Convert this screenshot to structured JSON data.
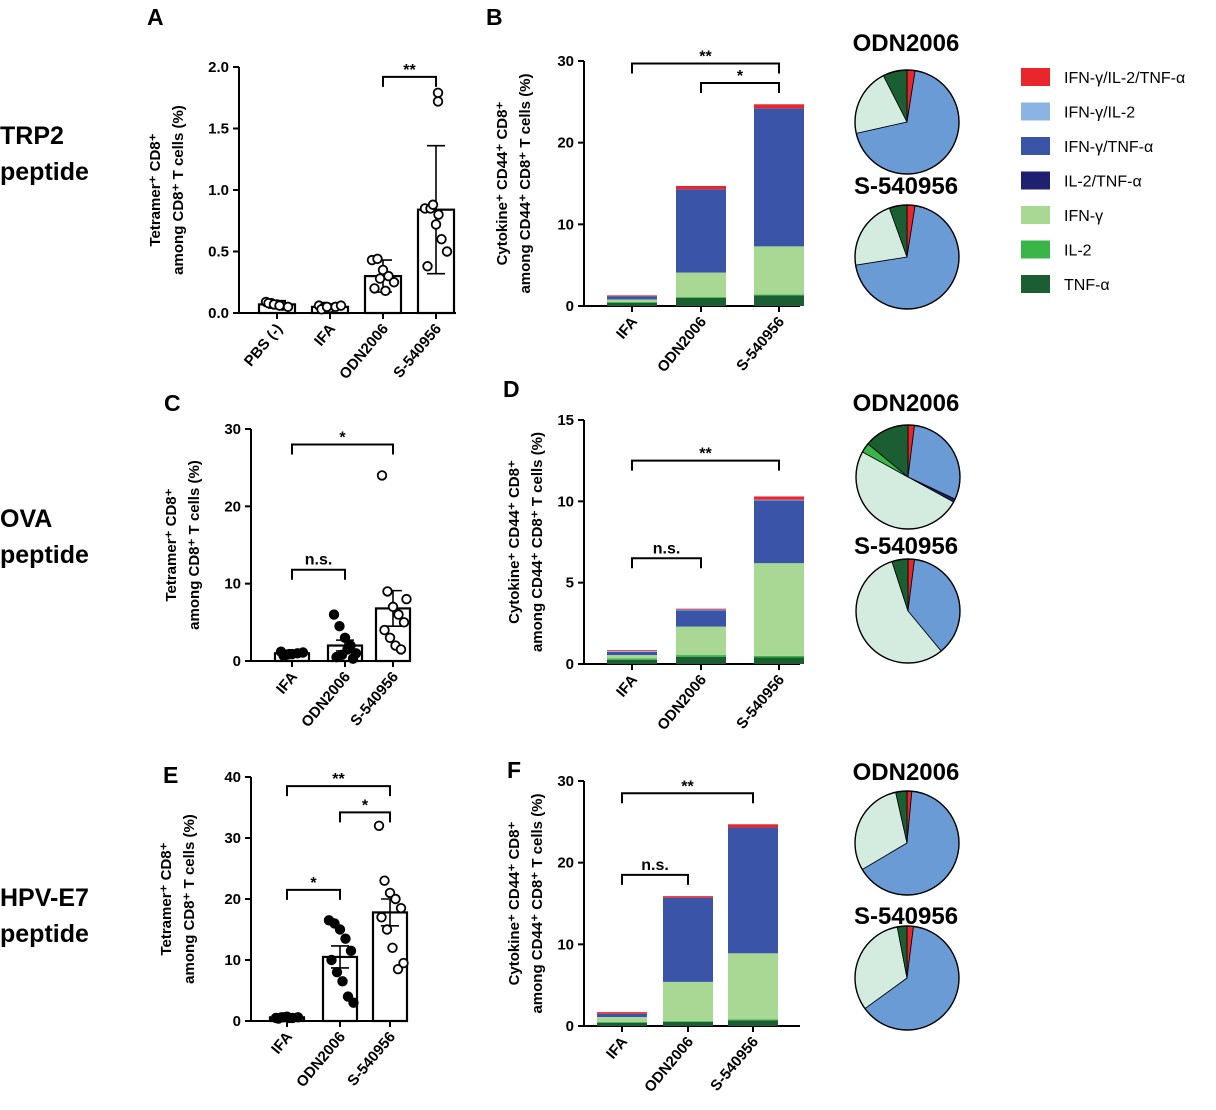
{
  "row_labels": [
    {
      "line1": "TRP2",
      "line2": "peptide"
    },
    {
      "line1": "OVA",
      "line2": "peptide"
    },
    {
      "line1": "HPV-E7",
      "line2": "peptide"
    }
  ],
  "legend": [
    {
      "label": "IFN-γ/IL-2/TNF-α",
      "color": "#e8262c"
    },
    {
      "label": "IFN-γ/IL-2",
      "color": "#8bb4e3"
    },
    {
      "label": "IFN-γ/TNF-α",
      "color": "#3a55a8"
    },
    {
      "label": "IL-2/TNF-α",
      "color": "#1f2070"
    },
    {
      "label": "IFN-γ",
      "color": "#a8d893"
    },
    {
      "label": "IL-2",
      "color": "#3ab54a"
    },
    {
      "label": "TNF-α",
      "color": "#1b5e32"
    }
  ],
  "pie_colors": {
    "IFN-γ/IL-2/TNF-α": "#e8262c",
    "IFN-γ/TNF-α": "#6b9bd5",
    "IL-2/TNF-α": "#1f2070",
    "IFN-γ": "#d4ece0",
    "IL-2": "#3ab54a",
    "TNF-α": "#1b5e32"
  },
  "chart_data": [
    {
      "id": "A",
      "type": "bar",
      "title": "",
      "ylabel_lines": [
        "Tetramer",
        "+",
        " CD8",
        "+",
        "among CD8",
        "+",
        " T cells (%)"
      ],
      "ylabel_line1": "Tetramer⁺ CD8⁺",
      "ylabel_line2": "among CD8⁺ T cells (%)",
      "ylim": [
        0,
        2.0
      ],
      "yticks": [
        "0.0",
        "0.5",
        "1.0",
        "1.5",
        "2.0"
      ],
      "ytick_values": [
        0,
        0.5,
        1.0,
        1.5,
        2.0
      ],
      "categories": [
        "PBS (-)",
        "IFA",
        "ODN2006",
        "S-540956"
      ],
      "values": [
        0.07,
        0.05,
        0.3,
        0.84
      ],
      "errors": [
        0.03,
        0.02,
        0.13,
        0.52
      ],
      "points": [
        [
          0.09,
          0.08,
          0.07,
          0.06,
          0.05,
          0.08,
          0.07,
          0.06
        ],
        [
          0.06,
          0.05,
          0.04,
          0.05,
          0.06,
          0.03,
          0.05
        ],
        [
          0.43,
          0.44,
          0.35,
          0.3,
          0.25,
          0.2,
          0.28,
          0.18
        ],
        [
          0.85,
          0.85,
          0.72,
          0.6,
          0.5,
          0.38,
          0.88,
          0.8
        ]
      ],
      "outliers": [
        [],
        [],
        [],
        [
          1.72,
          1.79
        ]
      ],
      "markers": [
        "open",
        "open",
        "open",
        "open"
      ],
      "significance": [
        {
          "from": 2,
          "to": 3,
          "label": "**",
          "y": 1.92
        }
      ]
    },
    {
      "id": "C",
      "type": "bar",
      "ylabel_line1": "Tetramer⁺ CD8⁺",
      "ylabel_line2": "among CD8⁺ T cells (%)",
      "ylim": [
        0,
        30
      ],
      "yticks": [
        "0",
        "10",
        "20",
        "30"
      ],
      "ytick_values": [
        0,
        10,
        20,
        30
      ],
      "categories": [
        "IFA",
        "ODN2006",
        "S-540956"
      ],
      "values": [
        1.0,
        2.0,
        6.8
      ],
      "errors": [
        0.2,
        0.7,
        2.3
      ],
      "points": [
        [
          1.2,
          0.8,
          0.9,
          1.0,
          1.1,
          0.7,
          0.9
        ],
        [
          6.0,
          4.5,
          3.0,
          2.0,
          1.0,
          0.5,
          0.8,
          1.5,
          0.3
        ],
        [
          24.0,
          9.0,
          7.0,
          6.0,
          5.0,
          4.0,
          3.0,
          2.0,
          1.5,
          8.0
        ]
      ],
      "outliers": [
        [],
        [],
        []
      ],
      "markers": [
        "filled",
        "filled",
        "open"
      ],
      "significance": [
        {
          "from": 0,
          "to": 2,
          "label": "*",
          "y": 28
        },
        {
          "from": 0,
          "to": 1,
          "label": "n.s.",
          "y": 11.8
        }
      ]
    },
    {
      "id": "E",
      "type": "bar",
      "ylabel_line1": "Tetramer⁺ CD8⁺",
      "ylabel_line2": "among CD8⁺ T cells (%)",
      "ylim": [
        0,
        40
      ],
      "yticks": [
        "0",
        "10",
        "20",
        "30",
        "40"
      ],
      "ytick_values": [
        0,
        10,
        20,
        30,
        40
      ],
      "categories": [
        "IFA",
        "ODN2006",
        "S-540956"
      ],
      "values": [
        0.6,
        10.5,
        17.8
      ],
      "errors": [
        0.1,
        1.8,
        2.2
      ],
      "points": [
        [
          0.5,
          0.6,
          0.7,
          0.5,
          0.6,
          0.4,
          0.6,
          0.5
        ],
        [
          16.5,
          16.0,
          15.0,
          13.5,
          11.5,
          10.0,
          8.0,
          6.5,
          4.0,
          3.0
        ],
        [
          32.0,
          23.0,
          21.0,
          20.0,
          18.5,
          17.0,
          15.0,
          12.0,
          8.5,
          9.5
        ]
      ],
      "outliers": [
        [],
        [],
        []
      ],
      "markers": [
        "filled",
        "filled",
        "open"
      ],
      "significance": [
        {
          "from": 0,
          "to": 2,
          "label": "**",
          "y": 38.5
        },
        {
          "from": 1,
          "to": 2,
          "label": "*",
          "y": 34.2
        },
        {
          "from": 0,
          "to": 1,
          "label": "*",
          "y": 21.5
        }
      ]
    },
    {
      "id": "B",
      "type": "stacked-bar",
      "ylabel_line1": "Cytokine⁺ CD44⁺ CD8⁺",
      "ylabel_line2": "among CD44⁺ CD8⁺ T cells (%)",
      "ylim": [
        0,
        30
      ],
      "yticks": [
        "0",
        "10",
        "20",
        "30"
      ],
      "ytick_values": [
        0,
        10,
        20,
        30
      ],
      "categories": [
        "IFA",
        "ODN2006",
        "S-540956"
      ],
      "series": [
        {
          "name": "TNF-α",
          "values": [
            0.4,
            1.0,
            1.3
          ]
        },
        {
          "name": "IL-2",
          "values": [
            0.1,
            0.1,
            0.1
          ]
        },
        {
          "name": "IFN-γ",
          "values": [
            0.3,
            3.0,
            5.9
          ]
        },
        {
          "name": "IL-2/TNF-α",
          "values": [
            0.0,
            0.0,
            0.0
          ]
        },
        {
          "name": "IFN-γ/TNF-α",
          "values": [
            0.4,
            10.2,
            16.9
          ]
        },
        {
          "name": "IFN-γ/IL-2",
          "values": [
            0.0,
            0.0,
            0.0
          ]
        },
        {
          "name": "IFN-γ/IL-2/TNF-α",
          "values": [
            0.1,
            0.4,
            0.5
          ]
        }
      ],
      "significance": [
        {
          "from": 0,
          "to": 2,
          "label": "**",
          "y": 29.7
        },
        {
          "from": 1,
          "to": 2,
          "label": "*",
          "y": 27.3
        }
      ]
    },
    {
      "id": "D",
      "type": "stacked-bar",
      "ylabel_line1": "Cytokine⁺ CD44⁺ CD8⁺",
      "ylabel_line2": "among CD44⁺ CD8⁺ T cells (%)",
      "ylim": [
        0,
        15
      ],
      "yticks": [
        "0",
        "5",
        "10",
        "15"
      ],
      "ytick_values": [
        0,
        5,
        10,
        15
      ],
      "categories": [
        "IFA",
        "ODN2006",
        "S-540956"
      ],
      "series": [
        {
          "name": "TNF-α",
          "values": [
            0.25,
            0.45,
            0.4
          ]
        },
        {
          "name": "IL-2",
          "values": [
            0.1,
            0.1,
            0.1
          ]
        },
        {
          "name": "IFN-γ",
          "values": [
            0.2,
            1.75,
            5.7
          ]
        },
        {
          "name": "IL-2/TNF-α",
          "values": [
            0.0,
            0.0,
            0.0
          ]
        },
        {
          "name": "IFN-γ/TNF-α",
          "values": [
            0.2,
            1.0,
            3.85
          ]
        },
        {
          "name": "IFN-γ/IL-2",
          "values": [
            0.05,
            0.05,
            0.05
          ]
        },
        {
          "name": "IFN-γ/IL-2/TNF-α",
          "values": [
            0.05,
            0.05,
            0.2
          ]
        }
      ],
      "significance": [
        {
          "from": 0,
          "to": 2,
          "label": "**",
          "y": 12.5
        },
        {
          "from": 0,
          "to": 1,
          "label": "n.s.",
          "y": 6.5
        }
      ]
    },
    {
      "id": "F",
      "type": "stacked-bar",
      "ylabel_line1": "Cytokine⁺ CD44⁺ CD8⁺",
      "ylabel_line2": "among CD44⁺ CD8⁺ T cells (%)",
      "ylim": [
        0,
        30
      ],
      "yticks": [
        "0",
        "10",
        "20",
        "30"
      ],
      "ytick_values": [
        0,
        10,
        20,
        30
      ],
      "categories": [
        "IFA",
        "ODN2006",
        "S-540956"
      ],
      "series": [
        {
          "name": "TNF-α",
          "values": [
            0.4,
            0.5,
            0.7
          ]
        },
        {
          "name": "IL-2",
          "values": [
            0.1,
            0.1,
            0.1
          ]
        },
        {
          "name": "IFN-γ",
          "values": [
            0.6,
            4.8,
            8.1
          ]
        },
        {
          "name": "IL-2/TNF-α",
          "values": [
            0.0,
            0.0,
            0.0
          ]
        },
        {
          "name": "IFN-γ/TNF-α",
          "values": [
            0.4,
            10.3,
            15.4
          ]
        },
        {
          "name": "IFN-γ/IL-2",
          "values": [
            0.0,
            0.0,
            0.0
          ]
        },
        {
          "name": "IFN-γ/IL-2/TNF-α",
          "values": [
            0.2,
            0.2,
            0.4
          ]
        }
      ],
      "significance": [
        {
          "from": 0,
          "to": 2,
          "label": "**",
          "y": 28.5
        },
        {
          "from": 0,
          "to": 1,
          "label": "n.s.",
          "y": 18.5
        }
      ]
    },
    {
      "id": "pies",
      "type": "pie",
      "pies": [
        {
          "title": "ODN2006",
          "row": 0,
          "slices": [
            {
              "name": "IFN-γ/IL-2/TNF-α",
              "value": 2.5
            },
            {
              "name": "IFN-γ/TNF-α",
              "value": 69
            },
            {
              "name": "IFN-γ",
              "value": 21
            },
            {
              "name": "TNF-α",
              "value": 7.5
            }
          ]
        },
        {
          "title": "S-540956",
          "row": 0,
          "slices": [
            {
              "name": "IFN-γ/IL-2/TNF-α",
              "value": 2.5
            },
            {
              "name": "IFN-γ/TNF-α",
              "value": 70
            },
            {
              "name": "IFN-γ",
              "value": 22
            },
            {
              "name": "TNF-α",
              "value": 5.5
            }
          ]
        },
        {
          "title": "ODN2006",
          "row": 1,
          "slices": [
            {
              "name": "IFN-γ/IL-2/TNF-α",
              "value": 2
            },
            {
              "name": "IFN-γ/TNF-α",
              "value": 30
            },
            {
              "name": "IL-2/TNF-α",
              "value": 1
            },
            {
              "name": "IFN-γ",
              "value": 50
            },
            {
              "name": "IL-2",
              "value": 3
            },
            {
              "name": "TNF-α",
              "value": 14
            }
          ]
        },
        {
          "title": "S-540956",
          "row": 1,
          "slices": [
            {
              "name": "IFN-γ/IL-2/TNF-α",
              "value": 2
            },
            {
              "name": "IFN-γ/TNF-α",
              "value": 37
            },
            {
              "name": "IFN-γ",
              "value": 56
            },
            {
              "name": "TNF-α",
              "value": 5
            }
          ]
        },
        {
          "title": "ODN2006",
          "row": 2,
          "slices": [
            {
              "name": "IFN-γ/IL-2/TNF-α",
              "value": 1.5
            },
            {
              "name": "IFN-γ/TNF-α",
              "value": 65
            },
            {
              "name": "IFN-γ",
              "value": 30
            },
            {
              "name": "TNF-α",
              "value": 3.5
            }
          ]
        },
        {
          "title": "S-540956",
          "row": 2,
          "slices": [
            {
              "name": "IFN-γ/IL-2/TNF-α",
              "value": 2
            },
            {
              "name": "IFN-γ/TNF-α",
              "value": 63
            },
            {
              "name": "IFN-γ",
              "value": 32
            },
            {
              "name": "TNF-α",
              "value": 3
            }
          ]
        }
      ]
    }
  ]
}
